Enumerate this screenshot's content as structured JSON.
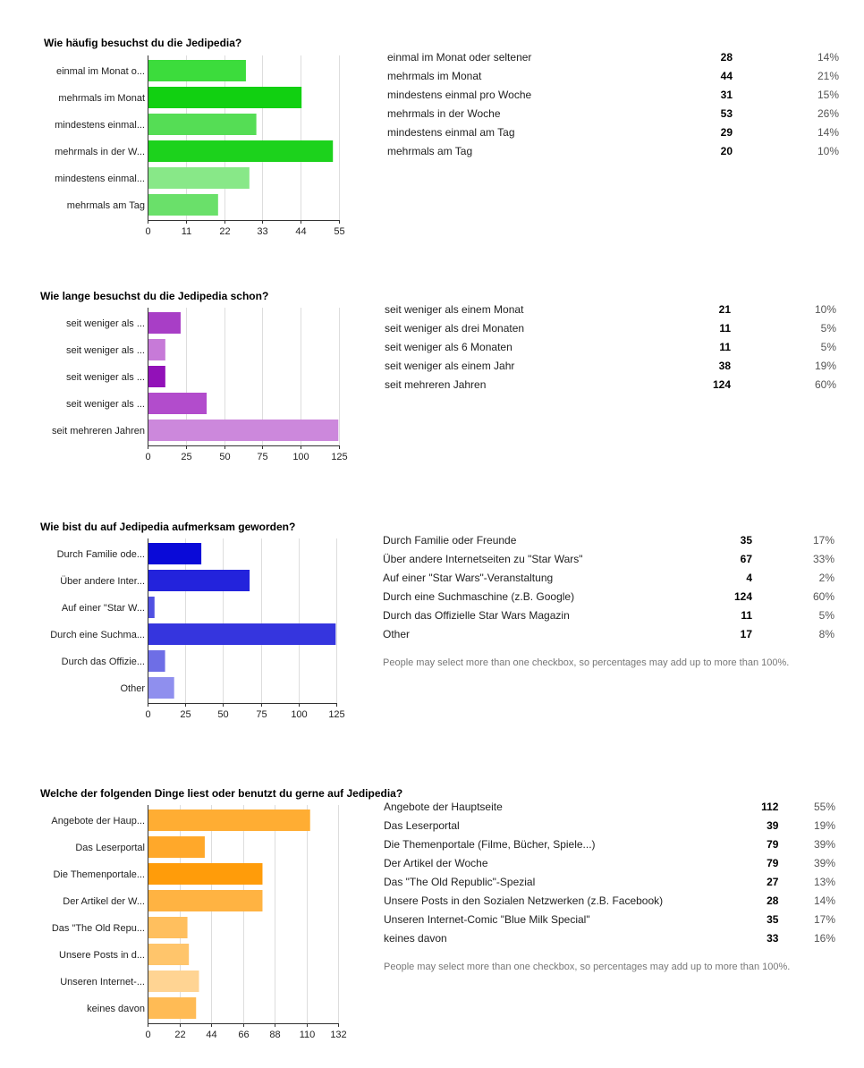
{
  "questions": [
    {
      "title": "Wie häufig besuchst du die Jedipedia?",
      "note": "",
      "chart_data": {
        "type": "bar",
        "orientation": "horizontal",
        "categories": [
          "einmal im Monat o...",
          "mehrmals im Monat",
          "mindestens einmal...",
          "mehrmals in der W...",
          "mindestens einmal...",
          "mehrmals am Tag"
        ],
        "values": [
          28,
          44,
          31,
          53,
          29,
          20
        ],
        "colors": [
          "#3cdc3c",
          "#11d011",
          "#55dd55",
          "#1cd21c",
          "#88e888",
          "#6ae06a"
        ],
        "xticks": [
          0,
          11,
          22,
          33,
          44,
          55
        ],
        "xlim": [
          0,
          55
        ],
        "grid": true
      },
      "rows": [
        {
          "label": "einmal im Monat oder seltener",
          "count": "28",
          "pct": "14%"
        },
        {
          "label": "mehrmals im Monat",
          "count": "44",
          "pct": "21%"
        },
        {
          "label": "mindestens einmal pro Woche",
          "count": "31",
          "pct": "15%"
        },
        {
          "label": "mehrmals in der Woche",
          "count": "53",
          "pct": "26%"
        },
        {
          "label": "mindestens einmal am Tag",
          "count": "29",
          "pct": "14%"
        },
        {
          "label": "mehrmals am Tag",
          "count": "20",
          "pct": "10%"
        }
      ]
    },
    {
      "title": "Wie lange besuchst du die Jedipedia schon?",
      "note": "",
      "chart_data": {
        "type": "bar",
        "orientation": "horizontal",
        "categories": [
          "seit weniger als ...",
          "seit weniger als ...",
          "seit weniger als ...",
          "seit weniger als ...",
          "seit mehreren Jahren"
        ],
        "values": [
          21,
          11,
          11,
          38,
          124
        ],
        "colors": [
          "#a83ec6",
          "#c77ad8",
          "#9211b8",
          "#b24ccc",
          "#cc88dc"
        ],
        "xticks": [
          0,
          25,
          50,
          75,
          100,
          125
        ],
        "xlim": [
          0,
          125
        ],
        "grid": true
      },
      "rows": [
        {
          "label": "seit weniger als einem Monat",
          "count": "21",
          "pct": "10%"
        },
        {
          "label": "seit weniger als drei Monaten",
          "count": "11",
          "pct": "5%"
        },
        {
          "label": "seit weniger als 6 Monaten",
          "count": "11",
          "pct": "5%"
        },
        {
          "label": "seit weniger als einem Jahr",
          "count": "38",
          "pct": "19%"
        },
        {
          "label": "seit mehreren Jahren",
          "count": "124",
          "pct": "60%"
        }
      ]
    },
    {
      "title": "Wie bist du auf Jedipedia aufmerksam geworden?",
      "note": "People may select more than one checkbox, so percentages may add up to more than 100%.",
      "chart_data": {
        "type": "bar",
        "orientation": "horizontal",
        "categories": [
          "Durch Familie ode...",
          "Über andere Inter...",
          "Auf einer \"Star W...",
          "Durch eine Suchma...",
          "Durch das Offizie...",
          "Other"
        ],
        "values": [
          35,
          67,
          4,
          124,
          11,
          17
        ],
        "colors": [
          "#0a0ad8",
          "#2323dc",
          "#5050e2",
          "#3535de",
          "#6e6ee6",
          "#8f8fee"
        ],
        "xticks": [
          0,
          25,
          50,
          75,
          100,
          125
        ],
        "xlim": [
          0,
          125
        ],
        "grid": true
      },
      "rows": [
        {
          "label": "Durch Familie oder Freunde",
          "count": "35",
          "pct": "17%"
        },
        {
          "label": "Über andere Internetseiten zu \"Star Wars\"",
          "count": "67",
          "pct": "33%"
        },
        {
          "label": "Auf einer \"Star Wars\"-Veranstaltung",
          "count": "4",
          "pct": "2%"
        },
        {
          "label": "Durch eine Suchmaschine (z.B. Google)",
          "count": "124",
          "pct": "60%"
        },
        {
          "label": "Durch das Offizielle Star Wars Magazin",
          "count": "11",
          "pct": "5%"
        },
        {
          "label": "Other",
          "count": "17",
          "pct": "8%"
        }
      ]
    },
    {
      "title": "Welche der folgenden Dinge liest oder benutzt du gerne auf Jedipedia?",
      "note": "People may select more than one checkbox, so percentages may add up to more than 100%.",
      "chart_data": {
        "type": "bar",
        "orientation": "horizontal",
        "categories": [
          "Angebote der Haup...",
          "Das Leserportal",
          "Die Themenportale...",
          "Der Artikel der W...",
          "Das \"The Old Repu...",
          "Unsere Posts in d...",
          "Unseren Internet-...",
          "keines davon"
        ],
        "values": [
          112,
          39,
          79,
          79,
          27,
          28,
          35,
          33
        ],
        "colors": [
          "#ffad33",
          "#ffa82a",
          "#ff9c0a",
          "#ffb342",
          "#ffbf5e",
          "#ffc56b",
          "#ffd493",
          "#ffbb55"
        ],
        "xticks": [
          0,
          22,
          44,
          66,
          88,
          110,
          132
        ],
        "xlim": [
          0,
          132
        ],
        "grid": true
      },
      "rows": [
        {
          "label": "Angebote der Hauptseite",
          "count": "112",
          "pct": "55%"
        },
        {
          "label": "Das Leserportal",
          "count": "39",
          "pct": "19%"
        },
        {
          "label": "Die Themenportale (Filme, Bücher, Spiele...)",
          "count": "79",
          "pct": "39%"
        },
        {
          "label": "Der Artikel der Woche",
          "count": "79",
          "pct": "39%"
        },
        {
          "label": "Das \"The Old Republic\"-Spezial",
          "count": "27",
          "pct": "13%"
        },
        {
          "label": "Unsere Posts in den Sozialen Netzwerken (z.B. Facebook)",
          "count": "28",
          "pct": "14%"
        },
        {
          "label": "Unseren Internet-Comic \"Blue Milk Special\"",
          "count": "35",
          "pct": "17%"
        },
        {
          "label": "keines davon",
          "count": "33",
          "pct": "16%"
        }
      ]
    }
  ]
}
